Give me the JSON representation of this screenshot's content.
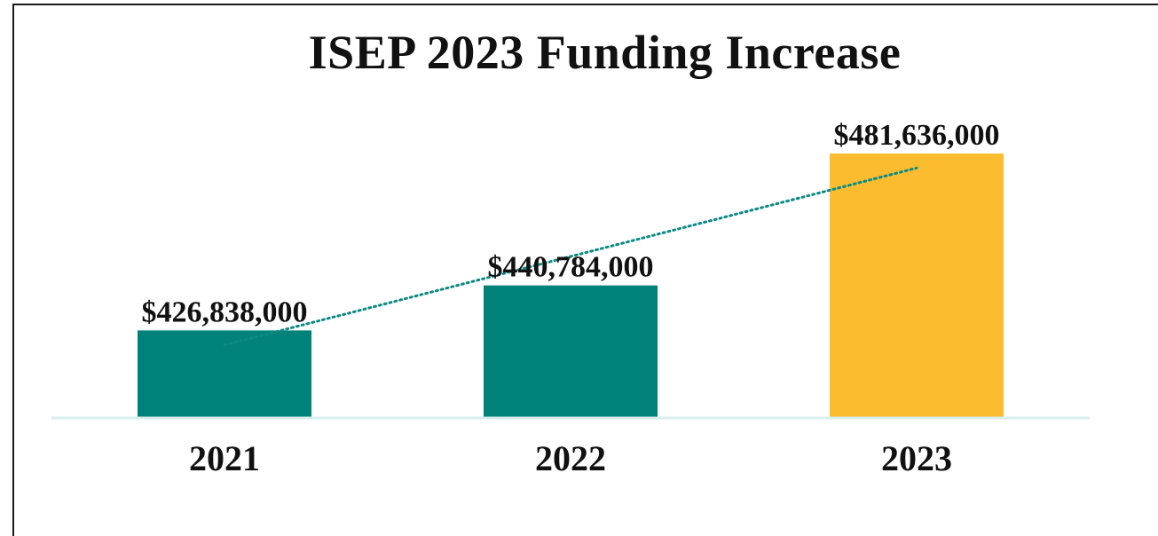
{
  "chart_data": {
    "type": "bar",
    "title": "ISEP 2023 Funding Increase",
    "categories": [
      "2021",
      "2022",
      "2023"
    ],
    "values": [
      426838000,
      440784000,
      481636000
    ],
    "data_labels": [
      "$426,838,000",
      "$440,784,000",
      "$481,636,000"
    ],
    "bar_colors": [
      "#00827a",
      "#00827a",
      "#fbbd2f"
    ],
    "trendline": {
      "style": "dotted",
      "color": "#0e8a86"
    },
    "baseline_color": "#d7efed",
    "xlabel": "",
    "ylabel": "",
    "ylim": [
      400000000,
      490000000
    ],
    "grid": false,
    "legend": "none"
  }
}
